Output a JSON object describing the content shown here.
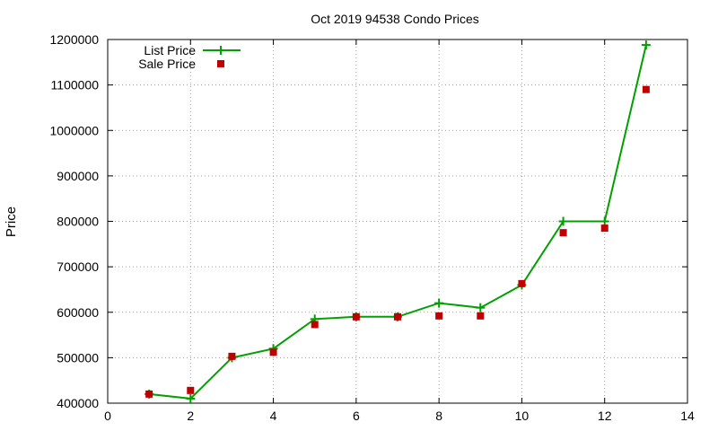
{
  "chart_data": {
    "type": "line",
    "title": "Oct 2019 94538 Condo Prices",
    "xlabel": "",
    "ylabel": "Price",
    "xlim": [
      0,
      14
    ],
    "ylim": [
      400000,
      1200000
    ],
    "xticks": [
      "0",
      "2",
      "4",
      "6",
      "8",
      "10",
      "12",
      "14"
    ],
    "yticks": [
      "400000",
      "500000",
      "600000",
      "700000",
      "800000",
      "900000",
      "1000000",
      "1100000",
      "1200000"
    ],
    "grid": true,
    "legend_position": "top-left",
    "series": [
      {
        "name": "List Price",
        "style": "line-with-plus-markers",
        "color": "#00a000",
        "x": [
          1,
          2,
          3,
          4,
          5,
          6,
          7,
          8,
          9,
          10,
          11,
          12,
          13
        ],
        "y": [
          420000,
          410000,
          500000,
          520000,
          585000,
          590000,
          590000,
          620000,
          610000,
          660000,
          800000,
          800000,
          1188000
        ]
      },
      {
        "name": "Sale Price",
        "style": "square-markers",
        "color": "#c00000",
        "x": [
          1,
          2,
          3,
          4,
          5,
          6,
          7,
          8,
          9,
          10,
          11,
          12,
          13
        ],
        "y": [
          420000,
          428000,
          503000,
          512000,
          573000,
          590000,
          590000,
          592000,
          592000,
          663000,
          775000,
          785000,
          1090000
        ]
      }
    ]
  }
}
